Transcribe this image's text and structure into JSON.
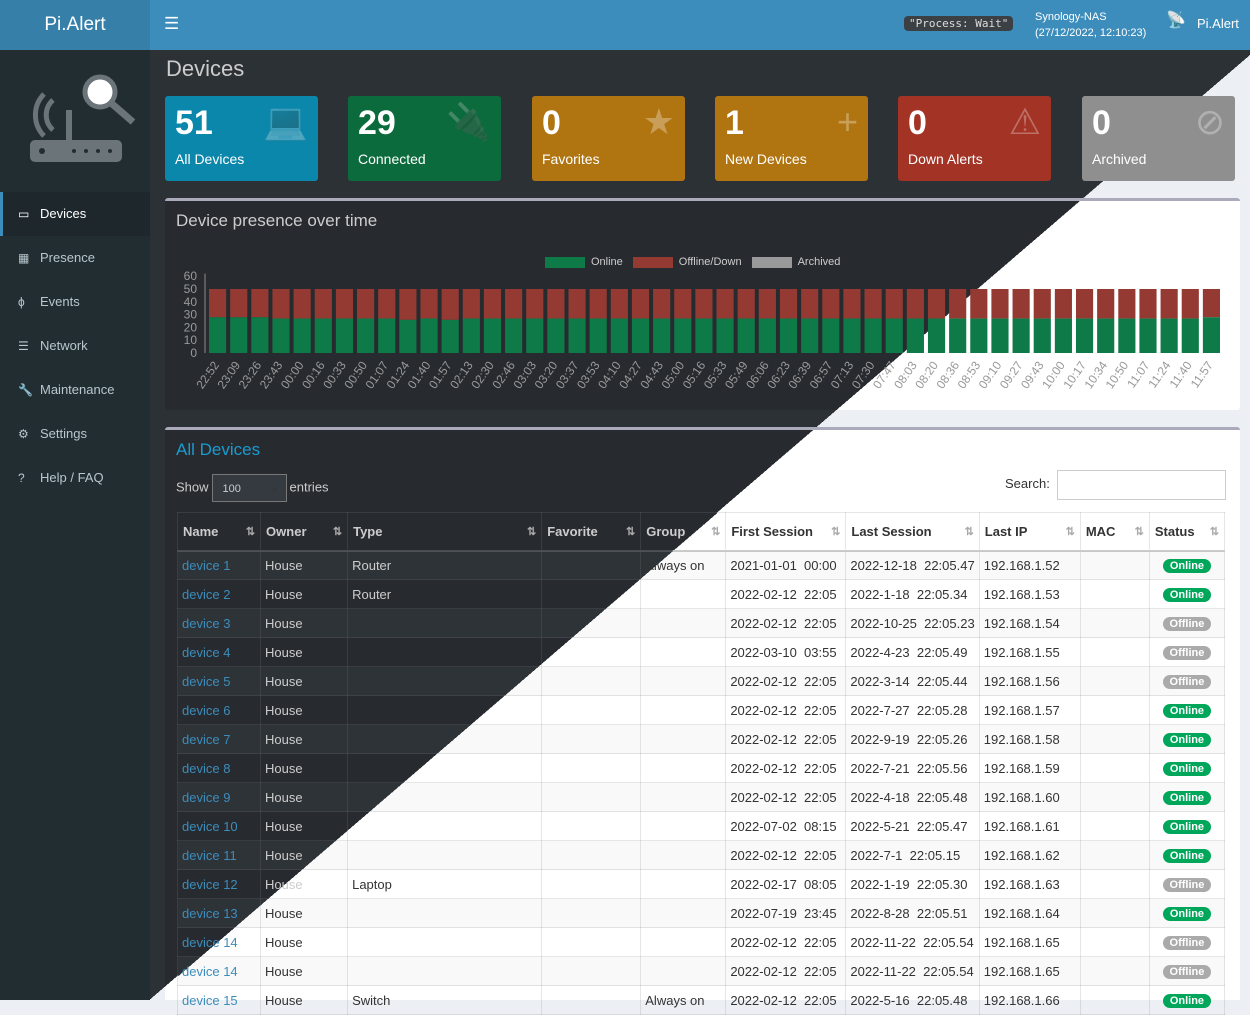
{
  "header": {
    "logo": "Pi.Alert",
    "menu_icon": "hamburger-icon",
    "process_status": "\"Process: Wait\"",
    "host": "Synology-NAS",
    "datetime": "(27/12/2022, 12:10:23)",
    "app_name": "Pi.Alert"
  },
  "sidebar": {
    "items": [
      {
        "label": "Devices",
        "icon": "laptop-icon",
        "active": true
      },
      {
        "label": "Presence",
        "icon": "calendar-icon"
      },
      {
        "label": "Events",
        "icon": "bolt-icon"
      },
      {
        "label": "Network",
        "icon": "server-icon"
      },
      {
        "label": "Maintenance",
        "icon": "wrench-icon"
      },
      {
        "label": "Settings",
        "icon": "gear-icon"
      },
      {
        "label": "Help / FAQ",
        "icon": "question-icon"
      }
    ]
  },
  "page": {
    "title": "Devices"
  },
  "tiles": [
    {
      "count": "51",
      "label": "All Devices",
      "icon": "laptop-icon",
      "color": "#0a87ab"
    },
    {
      "count": "29",
      "label": "Connected",
      "icon": "plug-icon",
      "color": "#0b6b3c"
    },
    {
      "count": "0",
      "label": "Favorites",
      "icon": "star-icon",
      "color": "#b07410"
    },
    {
      "count": "1",
      "label": "New Devices",
      "icon": "plus-icon",
      "color": "#b07410"
    },
    {
      "count": "0",
      "label": "Down Alerts",
      "icon": "warning-icon",
      "color": "#a23325"
    },
    {
      "count": "0",
      "label": "Archived",
      "icon": "eye-slash-icon",
      "color": "#8f8f8f"
    }
  ],
  "presence": {
    "title": "Device presence over time"
  },
  "chart_data": {
    "type": "bar",
    "stacked": true,
    "ylim": [
      0,
      60
    ],
    "yticks": [
      0,
      10,
      20,
      30,
      40,
      50,
      60
    ],
    "legend": "top-center",
    "categories": [
      "22:52",
      "23:09",
      "23:26",
      "23:43",
      "00:00",
      "00:16",
      "00:33",
      "00:50",
      "01:07",
      "01:24",
      "01:40",
      "01:57",
      "02:13",
      "02:30",
      "02:46",
      "03:03",
      "03:20",
      "03:37",
      "03:53",
      "04:10",
      "04:27",
      "04:43",
      "05:00",
      "05:16",
      "05:33",
      "05:49",
      "06:06",
      "06:23",
      "06:39",
      "06:57",
      "07:13",
      "07:30",
      "07:47",
      "08:03",
      "08:20",
      "08:36",
      "08:53",
      "09:10",
      "09:27",
      "09:43",
      "10:00",
      "10:17",
      "10:34",
      "10:50",
      "11:07",
      "11:24",
      "11:40",
      "11:57"
    ],
    "series": [
      {
        "name": "Online",
        "color": "#0e7a48",
        "values": [
          28,
          28,
          28,
          27,
          27,
          27,
          27,
          27,
          27,
          26,
          27,
          26,
          27,
          27,
          27,
          27,
          27,
          27,
          27,
          27,
          27,
          27,
          27,
          27,
          27,
          27,
          27,
          27,
          27,
          27,
          27,
          27,
          27,
          27,
          27,
          27,
          27,
          27,
          27,
          27,
          27,
          27,
          27,
          27,
          27,
          27,
          27,
          28
        ]
      },
      {
        "name": "Offline/Down",
        "color": "#953a33",
        "values": [
          22,
          22,
          22,
          23,
          23,
          23,
          23,
          23,
          23,
          24,
          23,
          24,
          23,
          23,
          23,
          23,
          23,
          23,
          23,
          23,
          23,
          23,
          23,
          23,
          23,
          23,
          23,
          23,
          23,
          23,
          23,
          23,
          23,
          23,
          23,
          23,
          23,
          23,
          23,
          23,
          23,
          23,
          23,
          23,
          23,
          23,
          23,
          22
        ]
      },
      {
        "name": "Archived",
        "color": "#999999",
        "values": [
          0,
          0,
          0,
          0,
          0,
          0,
          0,
          0,
          0,
          0,
          0,
          0,
          0,
          0,
          0,
          0,
          0,
          0,
          0,
          0,
          0,
          0,
          0,
          0,
          0,
          0,
          0,
          0,
          0,
          0,
          0,
          0,
          0,
          0,
          0,
          0,
          0,
          0,
          0,
          0,
          0,
          0,
          0,
          0,
          0,
          0,
          0,
          0
        ]
      }
    ]
  },
  "devices": {
    "title": "All Devices",
    "show": "Show",
    "entries_value": "100",
    "entries": "entries",
    "search_label": "Search:",
    "search_value": "",
    "columns": [
      "Name",
      "Owner",
      "Type",
      "Favorite",
      "Group",
      "First Session",
      "Last Session",
      "Last IP",
      "MAC",
      "Status"
    ],
    "rows": [
      [
        "device 1",
        "House",
        "Router",
        "",
        "Always on",
        "2021-01-01  00:00",
        "2022-12-18  22:05.47",
        "192.168.1.52",
        "",
        "Online"
      ],
      [
        "device 2",
        "House",
        "Router",
        "",
        "",
        "2022-02-12  22:05",
        "2022-1-18  22:05.34",
        "192.168.1.53",
        "",
        "Online"
      ],
      [
        "device 3",
        "House",
        "",
        "",
        "",
        "2022-02-12  22:05",
        "2022-10-25  22:05.23",
        "192.168.1.54",
        "",
        "Offline"
      ],
      [
        "device 4",
        "House",
        "",
        "",
        "",
        "2022-03-10  03:55",
        "2022-4-23  22:05.49",
        "192.168.1.55",
        "",
        "Offline"
      ],
      [
        "device 5",
        "House",
        "",
        "",
        "",
        "2022-02-12  22:05",
        "2022-3-14  22:05.44",
        "192.168.1.56",
        "",
        "Offline"
      ],
      [
        "device 6",
        "House",
        "",
        "",
        "",
        "2022-02-12  22:05",
        "2022-7-27  22:05.28",
        "192.168.1.57",
        "",
        "Online"
      ],
      [
        "device 7",
        "House",
        "",
        "",
        "",
        "2022-02-12  22:05",
        "2022-9-19  22:05.26",
        "192.168.1.58",
        "",
        "Online"
      ],
      [
        "device 8",
        "House",
        "",
        "",
        "",
        "2022-02-12  22:05",
        "2022-7-21  22:05.56",
        "192.168.1.59",
        "",
        "Online"
      ],
      [
        "device 9",
        "House",
        "",
        "",
        "",
        "2022-02-12  22:05",
        "2022-4-18  22:05.48",
        "192.168.1.60",
        "",
        "Online"
      ],
      [
        "device 10",
        "House",
        "",
        "",
        "",
        "2022-07-02  08:15",
        "2022-5-21  22:05.47",
        "192.168.1.61",
        "",
        "Online"
      ],
      [
        "device 11",
        "House",
        "",
        "",
        "",
        "2022-02-12  22:05",
        "2022-7-1  22:05.15",
        "192.168.1.62",
        "",
        "Online"
      ],
      [
        "device 12",
        "House",
        "Laptop",
        "",
        "",
        "2022-02-17  08:05",
        "2022-1-19  22:05.30",
        "192.168.1.63",
        "",
        "Offline"
      ],
      [
        "device 13",
        "House",
        "",
        "",
        "",
        "2022-07-19  23:45",
        "2022-8-28  22:05.51",
        "192.168.1.64",
        "",
        "Online"
      ],
      [
        "device 14",
        "House",
        "",
        "",
        "",
        "2022-02-12  22:05",
        "2022-11-22  22:05.54",
        "192.168.1.65",
        "",
        "Offline"
      ],
      [
        "device 14",
        "House",
        "",
        "",
        "",
        "2022-02-12  22:05",
        "2022-11-22  22:05.54",
        "192.168.1.65",
        "",
        "Offline"
      ],
      [
        "device 15",
        "House",
        "Switch",
        "",
        "Always on",
        "2022-02-12  22:05",
        "2022-5-16  22:05.48",
        "192.168.1.66",
        "",
        "Online"
      ]
    ]
  },
  "status_colors": {
    "Online": "#00a65a",
    "Offline": "#aaaaaa"
  }
}
